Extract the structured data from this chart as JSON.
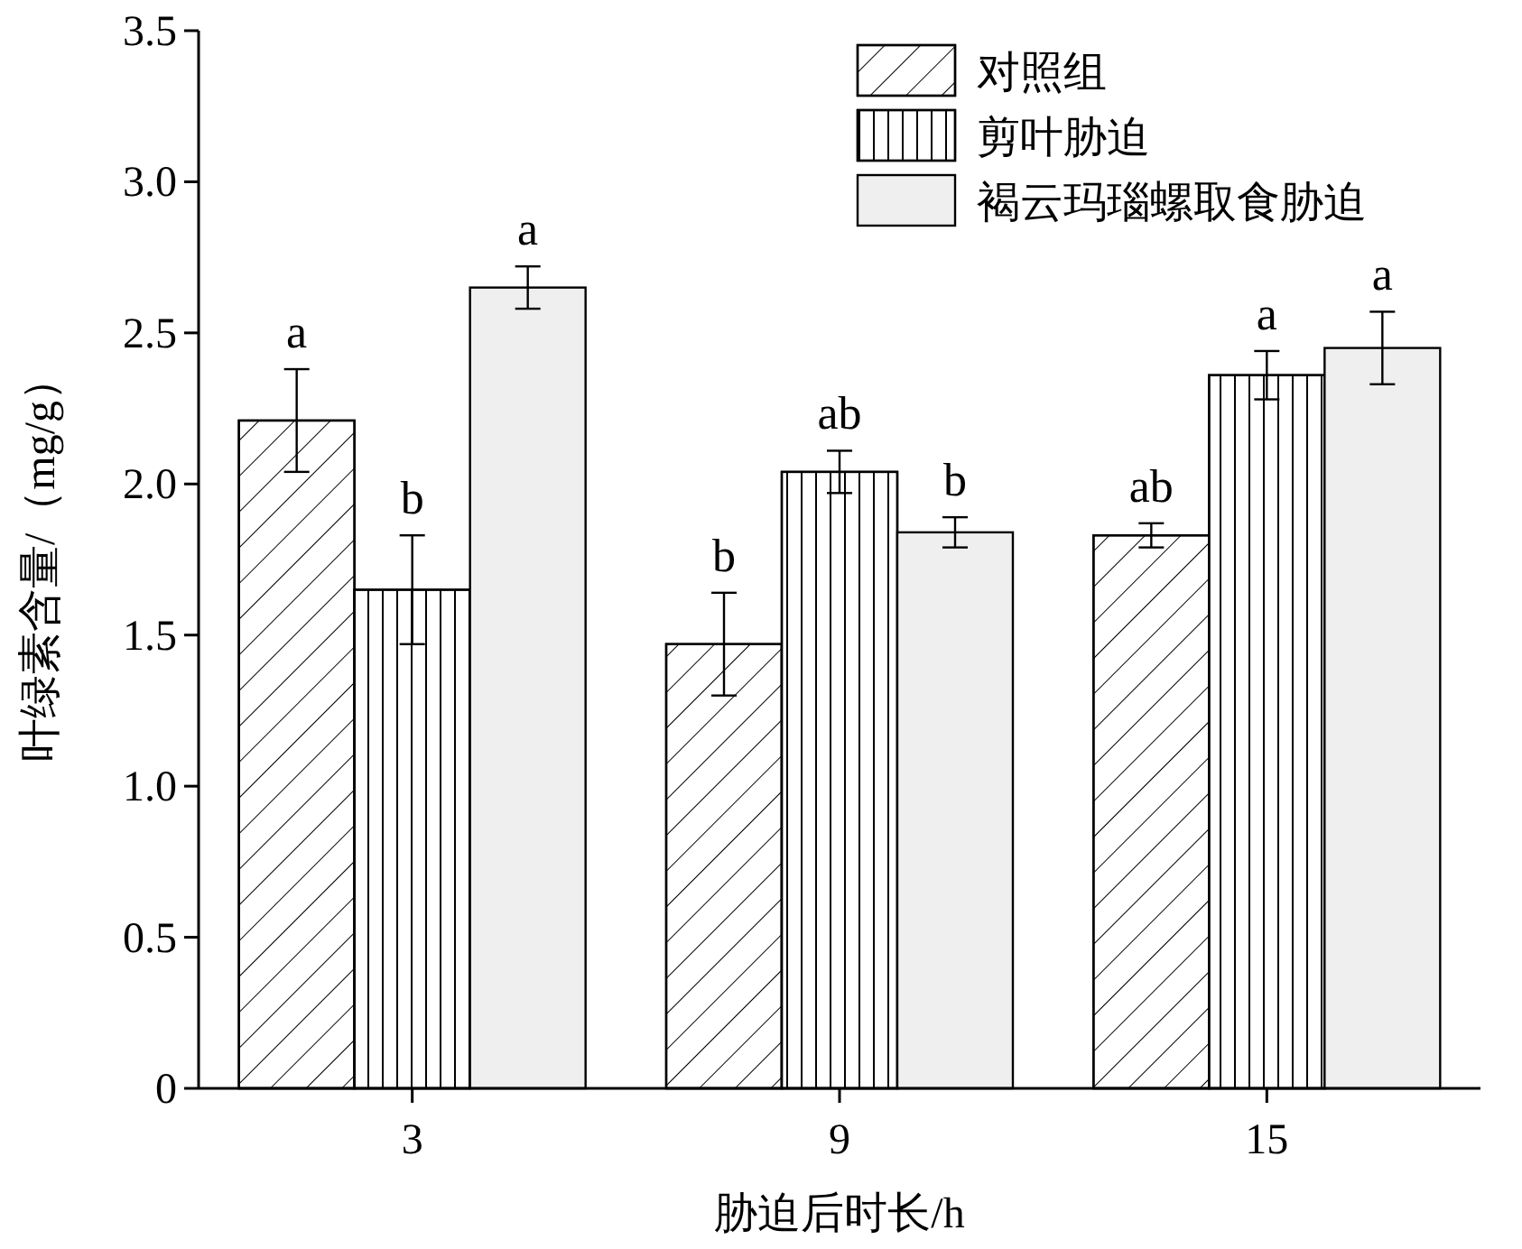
{
  "chart_data": {
    "type": "bar",
    "xlabel": "胁迫后时长/h",
    "ylabel": "叶绿素含量/（mg/g）",
    "categories": [
      "3",
      "9",
      "15"
    ],
    "series": [
      {
        "name": "对照组",
        "color": "#ffffff",
        "values": [
          2.21,
          1.47,
          1.83
        ],
        "errors": [
          0.17,
          0.17,
          0.04
        ]
      },
      {
        "name": "剪叶胁迫",
        "color": "#ffffff",
        "values": [
          1.65,
          2.04,
          2.36
        ],
        "errors": [
          0.18,
          0.07,
          0.08
        ]
      },
      {
        "name": "褐云玛瑙螺取食胁迫",
        "color": "#efefef",
        "values": [
          2.65,
          1.84,
          2.45
        ],
        "errors": [
          0.07,
          0.05,
          0.12
        ]
      }
    ],
    "ylim": [
      0,
      3.5
    ],
    "yticks": [
      0,
      {
        "value": 0.5,
        "label": "0.5"
      },
      {
        "value": 1,
        "label": "1.0"
      },
      {
        "value": 1.5,
        "label": "1.5"
      },
      {
        "value": 2,
        "label": "2.0"
      },
      {
        "value": 2.5,
        "label": "2.5"
      },
      {
        "value": 3,
        "label": "3.0"
      },
      {
        "value": 3.5,
        "label": "3.5"
      }
    ],
    "legend": "top right",
    "grid": false,
    "annotations": [
      "a",
      "b",
      "a",
      "b",
      "ab",
      "b",
      "ab",
      "a",
      "a"
    ]
  }
}
